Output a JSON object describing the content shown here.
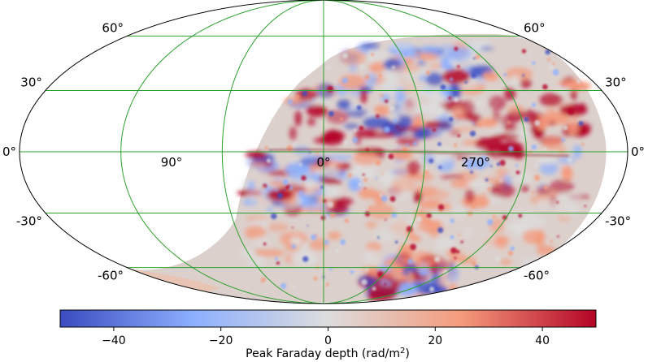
{
  "chart_data": {
    "type": "heatmap",
    "projection": "Mollweide (all-sky)",
    "grid": true,
    "grid_color": "#2ca02c",
    "colormap": "coolwarm",
    "colormap_colors": [
      "#3b4cc0",
      "#8db0fe",
      "#dddddd",
      "#f49a7b",
      "#b40426"
    ],
    "latitude_labels": [
      {
        "value": 60,
        "text": "60°"
      },
      {
        "value": 30,
        "text": "30°"
      },
      {
        "value": 0,
        "text": "0°"
      },
      {
        "value": -30,
        "text": "-30°"
      },
      {
        "value": -60,
        "text": "-60°"
      }
    ],
    "longitude_labels": [
      {
        "value": 90,
        "text": "90°"
      },
      {
        "value": 0,
        "text": "0°"
      },
      {
        "value": 270,
        "text": "270°"
      }
    ],
    "colorbar": {
      "range": [
        -50,
        50
      ],
      "ticks": [
        -40,
        -20,
        0,
        20,
        40
      ],
      "tick_labels": [
        "−40",
        "−20",
        "0",
        "20",
        "40"
      ],
      "label_main": "Peak Faraday depth (rad/m",
      "label_sup": "2",
      "label_end": ")"
    },
    "coverage": "southern sky below dec ≈ +50°; region north of ≈ +50° declination blank",
    "features": [
      {
        "description": "strong positive band along Galactic plane toward inner Galaxy",
        "sign": "positive"
      },
      {
        "description": "negative region above plane near l ≈ 0–60°",
        "sign": "negative"
      },
      {
        "description": "negative patches near l ≈ 60–90°, b ≈ -10°",
        "sign": "negative"
      }
    ]
  }
}
